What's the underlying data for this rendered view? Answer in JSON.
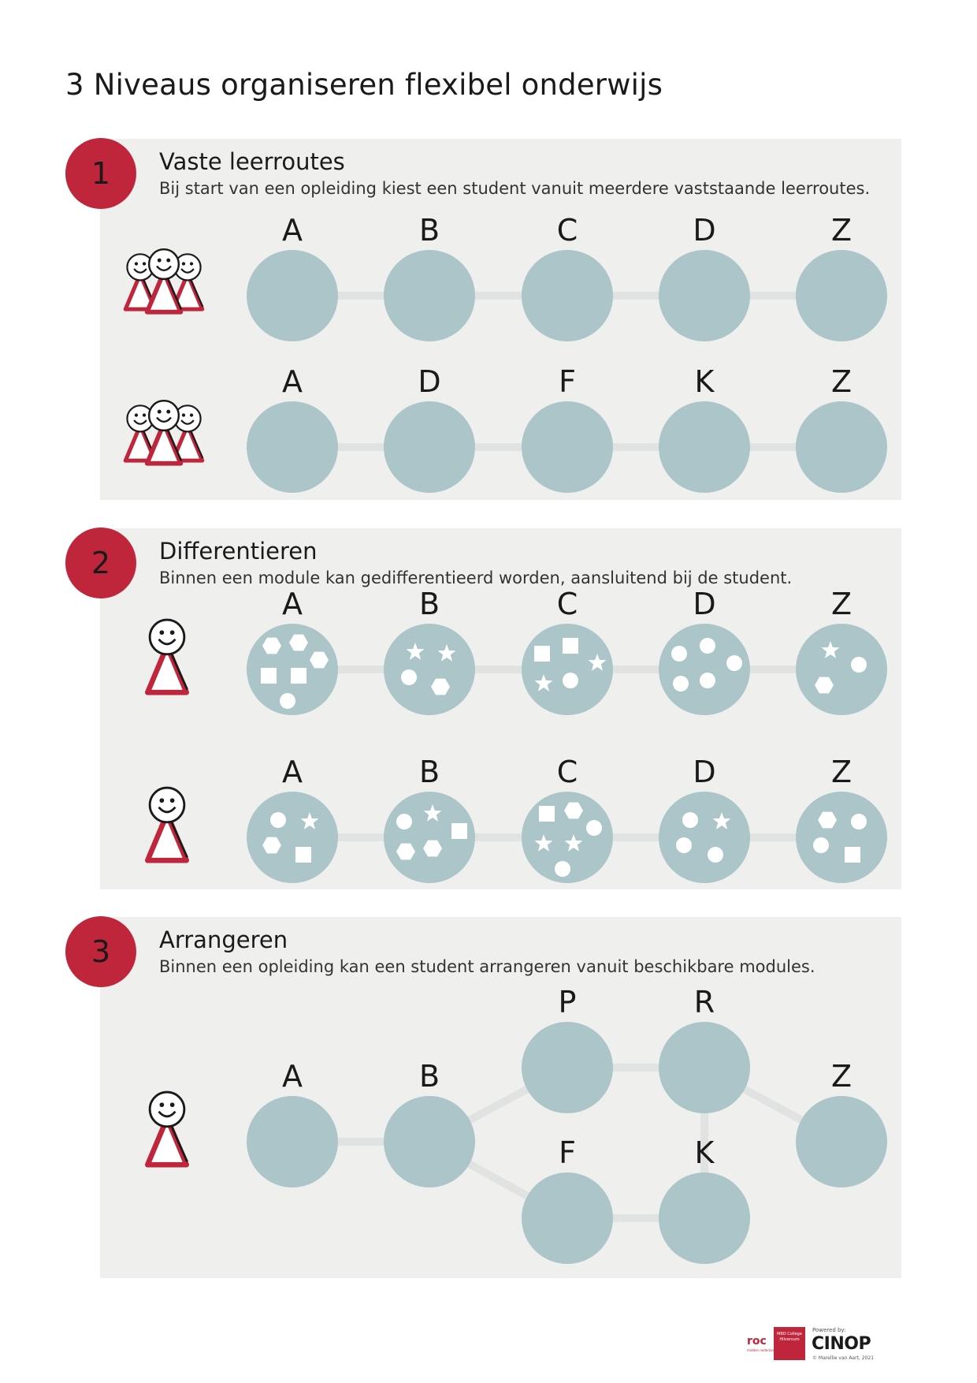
{
  "title": "3 Niveaus organiseren flexibel onderwijs",
  "colors": {
    "accent": "#c0263b",
    "panel": "#efefee",
    "node": "#abc5c8",
    "connector": "#e1e3e2"
  },
  "sections": [
    {
      "number": "1",
      "title": "Vaste leerroutes",
      "description": "Bij start van een opleiding kiest een student vanuit meerdere vaststaande leerroutes.",
      "routes": [
        {
          "students": "group",
          "nodes": [
            "A",
            "B",
            "C",
            "D",
            "Z"
          ]
        },
        {
          "students": "group",
          "nodes": [
            "A",
            "D",
            "F",
            "K",
            "Z"
          ]
        }
      ]
    },
    {
      "number": "2",
      "title": "Differentieren",
      "description": "Binnen een module kan gedifferentieerd worden, aansluitend bij de student.",
      "routes": [
        {
          "students": "single",
          "nodes": [
            "A",
            "B",
            "C",
            "D",
            "Z"
          ],
          "contents": [
            [
              "hexagon",
              "hexagon",
              "hexagon",
              "square",
              "square",
              "circle"
            ],
            [
              "star",
              "star",
              "circle",
              "hexagon"
            ],
            [
              "square",
              "square",
              "star",
              "star",
              "circle"
            ],
            [
              "circle",
              "circle",
              "circle",
              "circle",
              "circle"
            ],
            [
              "star",
              "circle",
              "hexagon"
            ]
          ]
        },
        {
          "students": "single",
          "nodes": [
            "A",
            "B",
            "C",
            "D",
            "Z"
          ],
          "contents": [
            [
              "circle",
              "star",
              "hexagon",
              "square"
            ],
            [
              "circle",
              "star",
              "square",
              "hexagon",
              "hexagon"
            ],
            [
              "square",
              "hexagon",
              "circle",
              "star",
              "star",
              "circle"
            ],
            [
              "circle",
              "star",
              "circle",
              "circle"
            ],
            [
              "hexagon",
              "circle",
              "circle",
              "square"
            ]
          ]
        }
      ]
    },
    {
      "number": "3",
      "title": "Arrangeren",
      "description": "Binnen een opleiding kan een student arrangeren vanuit beschikbare modules.",
      "nodes": [
        "A",
        "B",
        "P",
        "R",
        "F",
        "K",
        "Z"
      ],
      "edges": [
        [
          "A",
          "B"
        ],
        [
          "B",
          "P"
        ],
        [
          "B",
          "F"
        ],
        [
          "P",
          "R"
        ],
        [
          "F",
          "K"
        ],
        [
          "R",
          "K"
        ],
        [
          "R",
          "Z"
        ]
      ]
    }
  ],
  "footer": {
    "roc": "roc",
    "roc_sub": "midden nederland",
    "mbo": "MBO College Hilversum",
    "powered_by": "Powered by:",
    "cinop": "CINOP",
    "copyright": "© Marellie van Aart, 2021"
  }
}
